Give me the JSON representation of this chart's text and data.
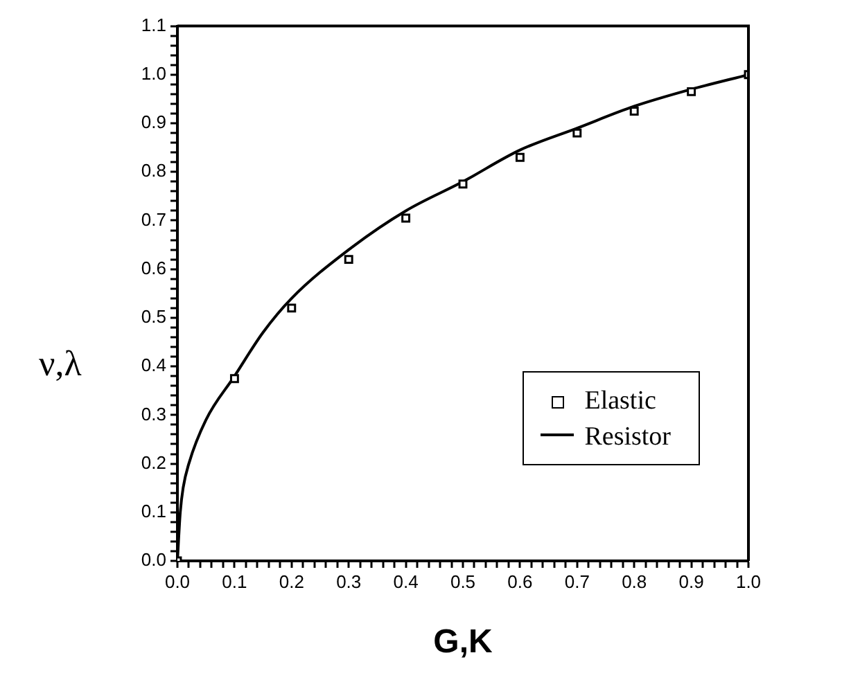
{
  "chart_data": {
    "type": "line",
    "xlabel": "G,K",
    "ylabel": "ν,λ",
    "legend": "bottom right",
    "xlim": [
      0,
      1
    ],
    "ylim": [
      0,
      1.1
    ],
    "xticks": [
      {
        "value": 0,
        "label": "0.0"
      },
      {
        "value": 0.02,
        "label": null
      },
      {
        "value": 0.04,
        "label": null
      },
      {
        "value": 0.06,
        "label": null
      },
      {
        "value": 0.08,
        "label": null
      },
      {
        "value": 0.1,
        "label": "0.1"
      },
      {
        "value": 0.12,
        "label": null
      },
      {
        "value": 0.14,
        "label": null
      },
      {
        "value": 0.16,
        "label": null
      },
      {
        "value": 0.18,
        "label": null
      },
      {
        "value": 0.2,
        "label": "0.2"
      },
      {
        "value": 0.22,
        "label": null
      },
      {
        "value": 0.24,
        "label": null
      },
      {
        "value": 0.26,
        "label": null
      },
      {
        "value": 0.28,
        "label": null
      },
      {
        "value": 0.3,
        "label": "0.3"
      },
      {
        "value": 0.32,
        "label": null
      },
      {
        "value": 0.34,
        "label": null
      },
      {
        "value": 0.36,
        "label": null
      },
      {
        "value": 0.38,
        "label": null
      },
      {
        "value": 0.4,
        "label": "0.4"
      },
      {
        "value": 0.42,
        "label": null
      },
      {
        "value": 0.44,
        "label": null
      },
      {
        "value": 0.46,
        "label": null
      },
      {
        "value": 0.48,
        "label": null
      },
      {
        "value": 0.5,
        "label": "0.5"
      },
      {
        "value": 0.52,
        "label": null
      },
      {
        "value": 0.54,
        "label": null
      },
      {
        "value": 0.56,
        "label": null
      },
      {
        "value": 0.58,
        "label": null
      },
      {
        "value": 0.6,
        "label": "0.6"
      },
      {
        "value": 0.62,
        "label": null
      },
      {
        "value": 0.64,
        "label": null
      },
      {
        "value": 0.66,
        "label": null
      },
      {
        "value": 0.68,
        "label": null
      },
      {
        "value": 0.7,
        "label": "0.7"
      },
      {
        "value": 0.72,
        "label": null
      },
      {
        "value": 0.74,
        "label": null
      },
      {
        "value": 0.76,
        "label": null
      },
      {
        "value": 0.78,
        "label": null
      },
      {
        "value": 0.8,
        "label": "0.8"
      },
      {
        "value": 0.82,
        "label": null
      },
      {
        "value": 0.84,
        "label": null
      },
      {
        "value": 0.86,
        "label": null
      },
      {
        "value": 0.88,
        "label": null
      },
      {
        "value": 0.9,
        "label": "0.9"
      },
      {
        "value": 0.92,
        "label": null
      },
      {
        "value": 0.94,
        "label": null
      },
      {
        "value": 0.96,
        "label": null
      },
      {
        "value": 0.98,
        "label": null
      },
      {
        "value": 1,
        "label": "1.0"
      }
    ],
    "yticks": [
      {
        "value": 0,
        "label": "0.0"
      },
      {
        "value": 0.02,
        "label": null
      },
      {
        "value": 0.04,
        "label": null
      },
      {
        "value": 0.06,
        "label": null
      },
      {
        "value": 0.08,
        "label": null
      },
      {
        "value": 0.1,
        "label": "0.1"
      },
      {
        "value": 0.12,
        "label": null
      },
      {
        "value": 0.14,
        "label": null
      },
      {
        "value": 0.16,
        "label": null
      },
      {
        "value": 0.18,
        "label": null
      },
      {
        "value": 0.2,
        "label": "0.2"
      },
      {
        "value": 0.22,
        "label": null
      },
      {
        "value": 0.24,
        "label": null
      },
      {
        "value": 0.26,
        "label": null
      },
      {
        "value": 0.28,
        "label": null
      },
      {
        "value": 0.3,
        "label": "0.3"
      },
      {
        "value": 0.32,
        "label": null
      },
      {
        "value": 0.34,
        "label": null
      },
      {
        "value": 0.36,
        "label": null
      },
      {
        "value": 0.38,
        "label": null
      },
      {
        "value": 0.4,
        "label": "0.4"
      },
      {
        "value": 0.42,
        "label": null
      },
      {
        "value": 0.44,
        "label": null
      },
      {
        "value": 0.46,
        "label": null
      },
      {
        "value": 0.48,
        "label": null
      },
      {
        "value": 0.5,
        "label": "0.5"
      },
      {
        "value": 0.52,
        "label": null
      },
      {
        "value": 0.54,
        "label": null
      },
      {
        "value": 0.56,
        "label": null
      },
      {
        "value": 0.58,
        "label": null
      },
      {
        "value": 0.6,
        "label": "0.6"
      },
      {
        "value": 0.62,
        "label": null
      },
      {
        "value": 0.64,
        "label": null
      },
      {
        "value": 0.66,
        "label": null
      },
      {
        "value": 0.68,
        "label": null
      },
      {
        "value": 0.7,
        "label": "0.7"
      },
      {
        "value": 0.72,
        "label": null
      },
      {
        "value": 0.74,
        "label": null
      },
      {
        "value": 0.76,
        "label": null
      },
      {
        "value": 0.78,
        "label": null
      },
      {
        "value": 0.8,
        "label": "0.8"
      },
      {
        "value": 0.82,
        "label": null
      },
      {
        "value": 0.84,
        "label": null
      },
      {
        "value": 0.86,
        "label": null
      },
      {
        "value": 0.88,
        "label": null
      },
      {
        "value": 0.9,
        "label": "0.9"
      },
      {
        "value": 0.92,
        "label": null
      },
      {
        "value": 0.94,
        "label": null
      },
      {
        "value": 0.96,
        "label": null
      },
      {
        "value": 0.98,
        "label": null
      },
      {
        "value": 1,
        "label": "1.0"
      },
      {
        "value": 1.02,
        "label": null
      },
      {
        "value": 1.04,
        "label": null
      },
      {
        "value": 1.06,
        "label": null
      },
      {
        "value": 1.08,
        "label": null
      },
      {
        "value": 1.1,
        "label": "1.1"
      }
    ],
    "series": [
      {
        "name": "Elastic",
        "type": "scatter",
        "marker": "square",
        "color": "#000000",
        "x": [
          0,
          0.1,
          0.2,
          0.3,
          0.4,
          0.5,
          0.6,
          0.7,
          0.8,
          0.9,
          1.0
        ],
        "values": [
          0,
          0.375,
          0.52,
          0.62,
          0.705,
          0.775,
          0.83,
          0.88,
          0.925,
          0.965,
          1.0
        ]
      },
      {
        "name": "Resistor",
        "type": "line",
        "marker": "none",
        "line_style": "solid",
        "color": "#000000",
        "x": [
          0,
          0.005,
          0.01,
          0.02,
          0.05,
          0.1,
          0.15,
          0.2,
          0.3,
          0.4,
          0.5,
          0.6,
          0.7,
          0.8,
          0.9,
          1.0
        ],
        "values": [
          0,
          0.1,
          0.15,
          0.2,
          0.29,
          0.38,
          0.47,
          0.54,
          0.64,
          0.72,
          0.78,
          0.845,
          0.89,
          0.935,
          0.97,
          1.0
        ]
      }
    ]
  }
}
